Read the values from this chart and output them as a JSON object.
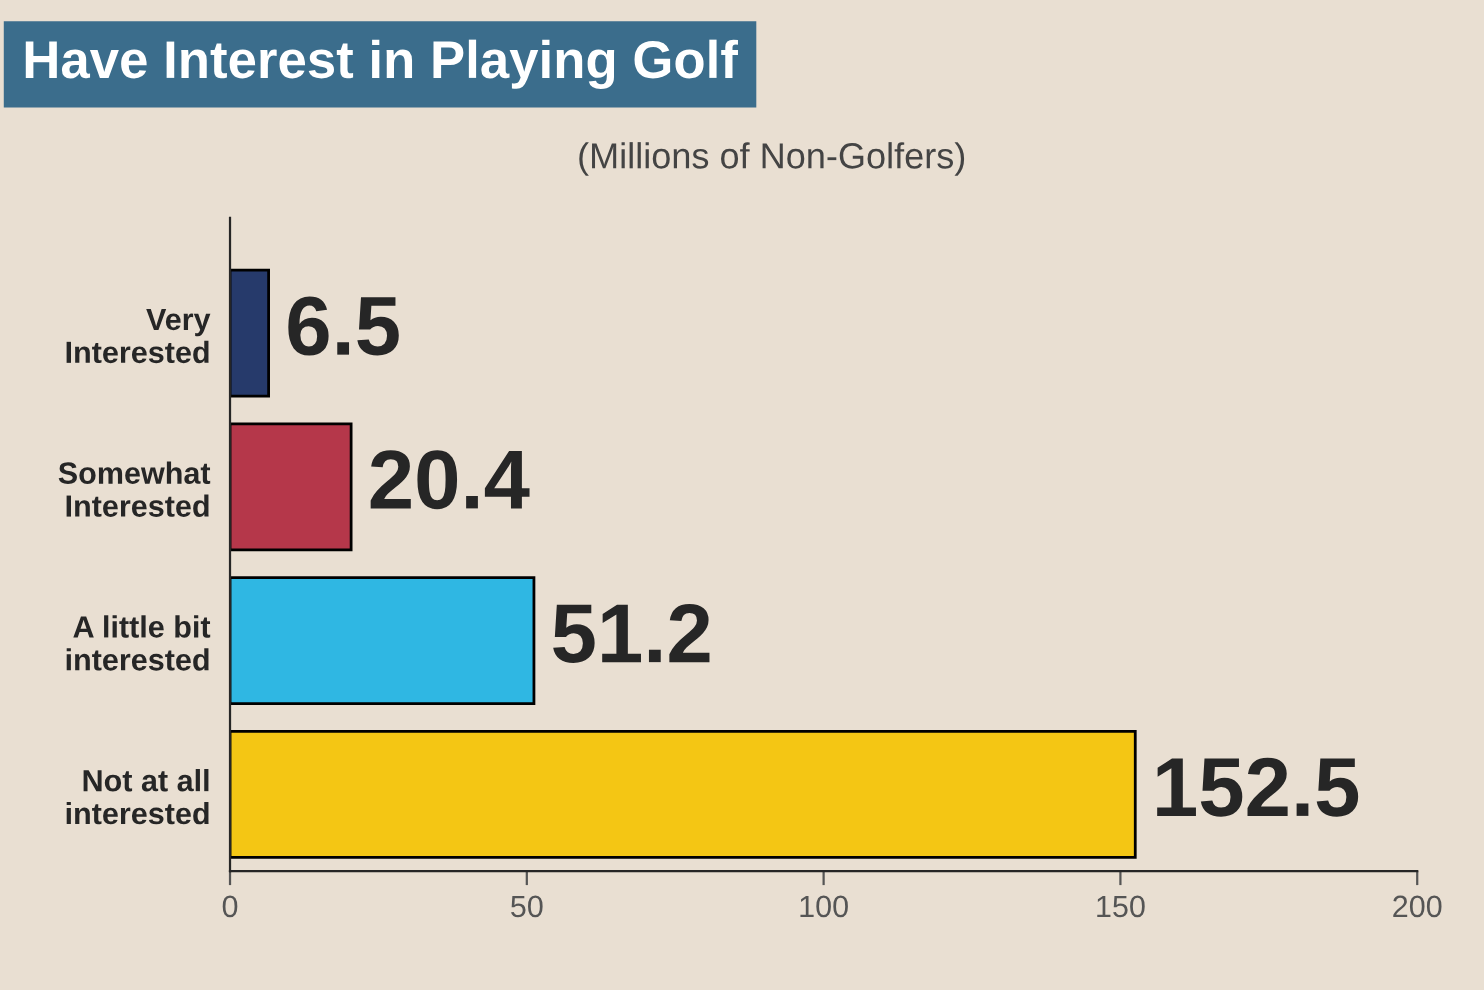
{
  "chart_data": {
    "type": "bar",
    "orientation": "horizontal",
    "title": "Have Interest in Playing Golf",
    "subtitle": "(Millions of Non-Golfers)",
    "categories": [
      "Very\nInterested",
      "Somewhat\nInterested",
      "A little bit\ninterested",
      "Not at all\ninterested"
    ],
    "values": [
      6.5,
      20.4,
      51.2,
      152.5
    ],
    "colors": [
      "#263a6b",
      "#b5374a",
      "#2fb7e3",
      "#f4c614"
    ],
    "xlim": [
      0,
      200
    ],
    "xticks": [
      0,
      50,
      100,
      150,
      200
    ],
    "grid": false,
    "data_labels": true
  }
}
